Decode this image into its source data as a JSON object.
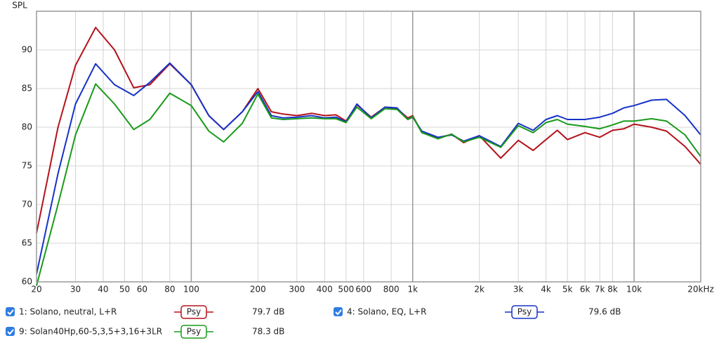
{
  "chart_data": {
    "type": "line",
    "y_label": "SPL",
    "log_x": true,
    "grid": true,
    "xlim": [
      20,
      20000
    ],
    "ylim": [
      60,
      95
    ],
    "yticks": [
      60,
      65,
      70,
      75,
      80,
      85,
      90
    ],
    "xticks": [
      20,
      30,
      40,
      50,
      60,
      80,
      100,
      200,
      300,
      400,
      500,
      600,
      800,
      {
        "value": 1000,
        "label": "1k"
      },
      {
        "value": 2000,
        "label": "2k"
      },
      {
        "value": 3000,
        "label": "3k"
      },
      {
        "value": 4000,
        "label": "4k"
      },
      {
        "value": 5000,
        "label": "5k"
      },
      {
        "value": 6000,
        "label": "6k"
      },
      {
        "value": 7000,
        "label": "7k"
      },
      {
        "value": 8000,
        "label": "8k"
      },
      {
        "value": 10000,
        "label": "10k"
      },
      {
        "value": 20000,
        "label": "20kHz"
      }
    ],
    "x": [
      20,
      25,
      30,
      37,
      45,
      55,
      65,
      80,
      100,
      120,
      140,
      170,
      200,
      230,
      260,
      300,
      350,
      400,
      450,
      500,
      560,
      650,
      750,
      850,
      950,
      1000,
      1100,
      1300,
      1500,
      1700,
      2000,
      2500,
      3000,
      3500,
      4000,
      4500,
      5000,
      6000,
      7000,
      8000,
      9000,
      10000,
      12000,
      14000,
      17000,
      20000
    ],
    "series": [
      {
        "name": "1: Solano, neutral, L+R",
        "color": "#b5121b",
        "smoothing": "Psy",
        "level": "79.7 dB",
        "values": [
          66.3,
          80,
          88,
          92.9,
          90,
          85.1,
          85.5,
          88.2,
          85.5,
          81.5,
          79.7,
          82,
          85,
          82,
          81.7,
          81.5,
          81.8,
          81.5,
          81.6,
          80.8,
          82.9,
          81.3,
          82.6,
          82.4,
          81.2,
          81.5,
          79.3,
          78.6,
          79.1,
          78,
          78.9,
          76,
          78.3,
          77,
          78.4,
          79.6,
          78.4,
          79.3,
          78.7,
          79.6,
          79.8,
          80.4,
          80,
          79.5,
          77.5,
          75.2
        ]
      },
      {
        "name": "4: Solano, EQ, L+R",
        "color": "#1632c8",
        "smoothing": "Psy",
        "level": "79.6 dB",
        "values": [
          61,
          74,
          83,
          88.2,
          85.5,
          84.1,
          85.8,
          88.3,
          85.5,
          81.5,
          79.7,
          82,
          84.6,
          81.5,
          81.2,
          81.3,
          81.5,
          81.2,
          81.3,
          80.7,
          83,
          81.2,
          82.6,
          82.5,
          81,
          81.3,
          79.5,
          78.7,
          79,
          78.2,
          78.9,
          77.5,
          80.5,
          79.6,
          81,
          81.5,
          81,
          81,
          81.3,
          81.8,
          82.5,
          82.8,
          83.5,
          83.6,
          81.5,
          79
        ]
      },
      {
        "name": "9: Solan40Hp,60-5,3,5+3,16+3LR",
        "color": "#1a9a1a",
        "smoothing": "Psy",
        "level": "78.3 dB",
        "values": [
          59.5,
          70,
          79,
          85.6,
          83,
          79.7,
          81,
          84.4,
          82.8,
          79.5,
          78.1,
          80.5,
          84.3,
          81.2,
          81,
          81.1,
          81.2,
          81.1,
          81.1,
          80.6,
          82.6,
          81.1,
          82.4,
          82.3,
          81,
          81.4,
          79.3,
          78.5,
          79.1,
          78.1,
          78.7,
          77.4,
          80.2,
          79.3,
          80.6,
          81,
          80.4,
          80.1,
          79.8,
          80.3,
          80.8,
          80.8,
          81.1,
          80.8,
          79,
          76.2
        ]
      }
    ]
  }
}
